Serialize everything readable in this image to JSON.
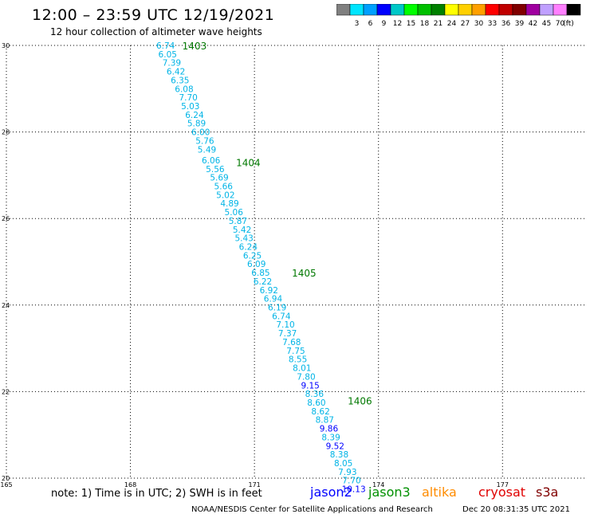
{
  "header": {
    "title": "12:00 – 23:59 UTC 12/19/2021",
    "subtitle": "12 hour collection of altimeter wave heights"
  },
  "colorbar": {
    "unit_label": "(ft)",
    "colors": [
      "#808080",
      "#00e5ff",
      "#00a0ff",
      "#0000ff",
      "#00c8c8",
      "#00ff00",
      "#00c000",
      "#008000",
      "#ffff00",
      "#ffd000",
      "#ffa000",
      "#ff0000",
      "#c00000",
      "#800000",
      "#a000a0",
      "#c0a0ff",
      "#ff80ff",
      "#000000"
    ],
    "labels": [
      "3",
      "6",
      "9",
      "12",
      "15",
      "18",
      "21",
      "24",
      "27",
      "30",
      "33",
      "36",
      "39",
      "42",
      "45",
      "70"
    ]
  },
  "chart_data": {
    "type": "scatter",
    "xlim": [
      165,
      179
    ],
    "ylim": [
      20,
      30
    ],
    "x_ticks": [
      "165",
      "168",
      "171",
      "174",
      "177"
    ],
    "y_ticks": [
      "20",
      "22",
      "24",
      "26",
      "28",
      "30"
    ],
    "grid": true,
    "track_labels": [
      {
        "text": "1403",
        "x": 169.55,
        "y": 30.0
      },
      {
        "text": "1404",
        "x": 170.85,
        "y": 27.3
      },
      {
        "text": "1405",
        "x": 172.2,
        "y": 24.75
      },
      {
        "text": "1406",
        "x": 173.55,
        "y": 21.8
      }
    ],
    "points": [
      {
        "x": 168.85,
        "y": 30.0,
        "label": "6.74"
      },
      {
        "x": 168.9,
        "y": 29.8,
        "label": "6.05"
      },
      {
        "x": 169.0,
        "y": 29.6,
        "label": "7.39"
      },
      {
        "x": 169.1,
        "y": 29.4,
        "label": "6.42"
      },
      {
        "x": 169.2,
        "y": 29.2,
        "label": "6.35"
      },
      {
        "x": 169.3,
        "y": 29.0,
        "label": "6.08"
      },
      {
        "x": 169.4,
        "y": 28.8,
        "label": "7.70"
      },
      {
        "x": 169.45,
        "y": 28.6,
        "label": "5.03"
      },
      {
        "x": 169.55,
        "y": 28.4,
        "label": "6.24"
      },
      {
        "x": 169.6,
        "y": 28.2,
        "label": "5.89"
      },
      {
        "x": 169.7,
        "y": 28.0,
        "label": "6.00"
      },
      {
        "x": 169.8,
        "y": 27.8,
        "label": "5.76"
      },
      {
        "x": 169.85,
        "y": 27.6,
        "label": "5.49"
      },
      {
        "x": 169.95,
        "y": 27.35,
        "label": "6.06"
      },
      {
        "x": 170.05,
        "y": 27.15,
        "label": "5.56"
      },
      {
        "x": 170.15,
        "y": 26.95,
        "label": "5.69"
      },
      {
        "x": 170.25,
        "y": 26.75,
        "label": "5.66"
      },
      {
        "x": 170.3,
        "y": 26.55,
        "label": "5.02"
      },
      {
        "x": 170.4,
        "y": 26.35,
        "label": "4.89"
      },
      {
        "x": 170.5,
        "y": 26.15,
        "label": "5.06"
      },
      {
        "x": 170.6,
        "y": 25.95,
        "label": "5.87"
      },
      {
        "x": 170.7,
        "y": 25.75,
        "label": "5.42"
      },
      {
        "x": 170.75,
        "y": 25.55,
        "label": "5.43"
      },
      {
        "x": 170.85,
        "y": 25.35,
        "label": "6.24"
      },
      {
        "x": 170.95,
        "y": 25.15,
        "label": "6.25"
      },
      {
        "x": 171.05,
        "y": 24.95,
        "label": "6.09"
      },
      {
        "x": 171.15,
        "y": 24.75,
        "label": "6.85"
      },
      {
        "x": 171.2,
        "y": 24.55,
        "label": "6.22"
      },
      {
        "x": 171.35,
        "y": 24.35,
        "label": "6.92"
      },
      {
        "x": 171.45,
        "y": 24.15,
        "label": "6.94"
      },
      {
        "x": 171.55,
        "y": 23.95,
        "label": "6.19"
      },
      {
        "x": 171.65,
        "y": 23.75,
        "label": "6.74"
      },
      {
        "x": 171.75,
        "y": 23.55,
        "label": "7.10"
      },
      {
        "x": 171.8,
        "y": 23.35,
        "label": "7.37"
      },
      {
        "x": 171.9,
        "y": 23.15,
        "label": "7.68"
      },
      {
        "x": 172.0,
        "y": 22.95,
        "label": "7.75"
      },
      {
        "x": 172.05,
        "y": 22.75,
        "label": "8.55"
      },
      {
        "x": 172.15,
        "y": 22.55,
        "label": "8.01"
      },
      {
        "x": 172.25,
        "y": 22.35,
        "label": "7.80"
      },
      {
        "x": 172.35,
        "y": 22.15,
        "label": "9.15",
        "color": "#0000ff"
      },
      {
        "x": 172.45,
        "y": 21.95,
        "label": "8.36"
      },
      {
        "x": 172.5,
        "y": 21.75,
        "label": "8.60"
      },
      {
        "x": 172.6,
        "y": 21.55,
        "label": "8.62"
      },
      {
        "x": 172.7,
        "y": 21.35,
        "label": "8.87"
      },
      {
        "x": 172.8,
        "y": 21.15,
        "label": "9.86",
        "color": "#0000ff"
      },
      {
        "x": 172.85,
        "y": 20.95,
        "label": "8.39"
      },
      {
        "x": 172.95,
        "y": 20.75,
        "label": "9.52",
        "color": "#0000ff"
      },
      {
        "x": 173.05,
        "y": 20.55,
        "label": "8.38"
      },
      {
        "x": 173.15,
        "y": 20.35,
        "label": "8.05"
      },
      {
        "x": 173.25,
        "y": 20.15,
        "label": "7.93"
      },
      {
        "x": 173.35,
        "y": 19.95,
        "label": "7.70"
      },
      {
        "x": 173.4,
        "y": 19.75,
        "label": "10.13",
        "color": "#0000ff"
      }
    ]
  },
  "colors": {
    "cyan_text": "#00b4e6",
    "blue_text": "#0000ff",
    "track_green": "#007800"
  },
  "footer": {
    "note": "note: 1) Time is in UTC; 2) SWH is in feet",
    "satellites": [
      {
        "name": "jason2",
        "color": "#0000ff"
      },
      {
        "name": "jason3",
        "color": "#009000"
      },
      {
        "name": "altika",
        "color": "#ff8c00"
      },
      {
        "name": "cryosat",
        "color": "#e00000"
      },
      {
        "name": "s3a",
        "color": "#800000"
      }
    ],
    "credit": "NOAA/NESDIS Center for Satellite Applications and Research",
    "timestamp": "Dec 20 08:31:35 UTC 2021"
  }
}
